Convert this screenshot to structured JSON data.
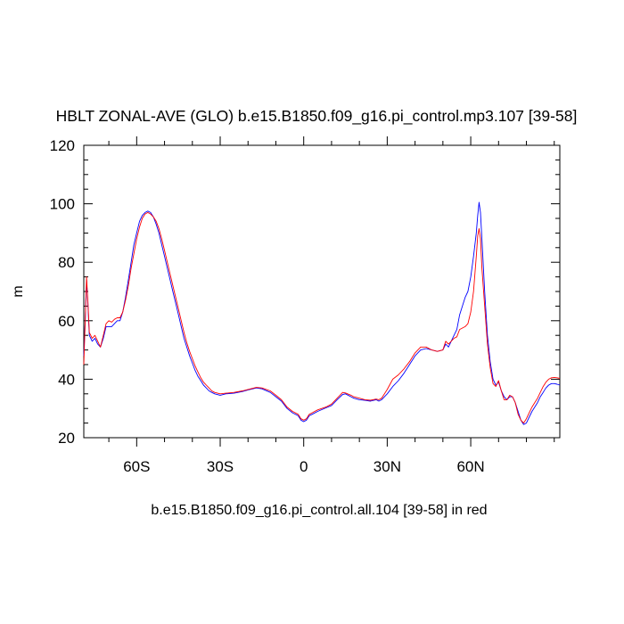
{
  "chart_data": {
    "type": "line",
    "title": "HBLT ZONAL-AVE (GLO) b.e15.B1850.f09_g16.pi_control.mp3.107 [39-58]",
    "ylabel": "m",
    "xlabel": "b.e15.B1850.f09_g16.pi_control.all.104 [39-58] in red",
    "xlim": [
      -79,
      92
    ],
    "ylim": [
      20,
      120
    ],
    "x_ticks": [
      {
        "value": -60,
        "label": "60S"
      },
      {
        "value": -30,
        "label": "30S"
      },
      {
        "value": 0,
        "label": "0"
      },
      {
        "value": 30,
        "label": "30N"
      },
      {
        "value": 60,
        "label": "60N"
      }
    ],
    "y_ticks": [
      20,
      40,
      60,
      80,
      100,
      120
    ],
    "grid": false,
    "series": [
      {
        "color": "#0000ff",
        "points": [
          [
            -79,
            48
          ],
          [
            -78.5,
            60
          ],
          [
            -78,
            74
          ],
          [
            -77.5,
            65
          ],
          [
            -77,
            55
          ],
          [
            -76,
            53
          ],
          [
            -75,
            54
          ],
          [
            -74,
            52
          ],
          [
            -73,
            51
          ],
          [
            -72,
            54
          ],
          [
            -71,
            58
          ],
          [
            -70,
            58
          ],
          [
            -69,
            58
          ],
          [
            -68,
            59
          ],
          [
            -67,
            60
          ],
          [
            -66,
            60
          ],
          [
            -65,
            63
          ],
          [
            -64,
            68
          ],
          [
            -63,
            74
          ],
          [
            -62,
            80
          ],
          [
            -61,
            86
          ],
          [
            -60,
            90
          ],
          [
            -59,
            94
          ],
          [
            -58,
            96
          ],
          [
            -57,
            97
          ],
          [
            -56,
            97.5
          ],
          [
            -55,
            97
          ],
          [
            -54,
            95.5
          ],
          [
            -53,
            93
          ],
          [
            -52,
            90
          ],
          [
            -51,
            86
          ],
          [
            -50,
            82
          ],
          [
            -49,
            78
          ],
          [
            -48,
            74
          ],
          [
            -47,
            70
          ],
          [
            -46,
            66
          ],
          [
            -45,
            62
          ],
          [
            -44,
            58
          ],
          [
            -43,
            54
          ],
          [
            -42,
            51
          ],
          [
            -41,
            48
          ],
          [
            -40,
            45.5
          ],
          [
            -39,
            43
          ],
          [
            -38,
            41
          ],
          [
            -37,
            39.5
          ],
          [
            -36,
            38
          ],
          [
            -35,
            37
          ],
          [
            -34,
            36
          ],
          [
            -33,
            35.5
          ],
          [
            -32,
            35
          ],
          [
            -30,
            34.5
          ],
          [
            -28,
            35
          ],
          [
            -25,
            35.2
          ],
          [
            -22,
            35.8
          ],
          [
            -20,
            36.3
          ],
          [
            -17,
            37
          ],
          [
            -15,
            36.7
          ],
          [
            -12,
            35.5
          ],
          [
            -10,
            34
          ],
          [
            -8,
            32.5
          ],
          [
            -6,
            30
          ],
          [
            -4,
            28.5
          ],
          [
            -2,
            27.5
          ],
          [
            -1,
            26
          ],
          [
            0,
            25.5
          ],
          [
            1,
            26
          ],
          [
            2,
            27.5
          ],
          [
            3,
            28
          ],
          [
            5,
            29
          ],
          [
            8,
            30.2
          ],
          [
            10,
            31
          ],
          [
            12,
            33
          ],
          [
            14,
            34.8
          ],
          [
            15,
            35
          ],
          [
            17,
            34
          ],
          [
            18,
            33.5
          ],
          [
            20,
            33
          ],
          [
            22,
            32.8
          ],
          [
            24,
            32.5
          ],
          [
            26,
            33
          ],
          [
            27,
            32.5
          ],
          [
            28,
            33
          ],
          [
            30,
            35
          ],
          [
            32,
            37.5
          ],
          [
            34,
            39.5
          ],
          [
            36,
            42
          ],
          [
            38,
            45
          ],
          [
            40,
            48
          ],
          [
            42,
            50
          ],
          [
            44,
            50.5
          ],
          [
            46,
            50
          ],
          [
            48,
            49.5
          ],
          [
            50,
            50
          ],
          [
            51,
            52
          ],
          [
            52,
            51
          ],
          [
            54,
            55
          ],
          [
            55,
            57
          ],
          [
            56,
            62
          ],
          [
            57,
            65
          ],
          [
            58,
            68
          ],
          [
            59,
            70
          ],
          [
            60,
            75
          ],
          [
            61,
            82
          ],
          [
            62,
            90
          ],
          [
            62.5,
            96
          ],
          [
            63,
            100.5
          ],
          [
            63.5,
            97
          ],
          [
            64,
            88
          ],
          [
            65,
            70
          ],
          [
            66,
            55
          ],
          [
            67,
            46
          ],
          [
            68,
            40
          ],
          [
            69,
            38
          ],
          [
            70,
            39
          ],
          [
            71,
            36
          ],
          [
            72,
            34
          ],
          [
            73,
            33
          ],
          [
            74,
            34
          ],
          [
            75,
            34
          ],
          [
            76,
            32
          ],
          [
            77,
            29
          ],
          [
            78,
            26
          ],
          [
            79,
            24.5
          ],
          [
            80,
            25
          ],
          [
            81,
            27
          ],
          [
            82,
            29
          ],
          [
            83,
            30.5
          ],
          [
            84,
            32
          ],
          [
            85,
            34
          ],
          [
            86,
            35.5
          ],
          [
            87,
            37
          ],
          [
            88,
            38
          ],
          [
            89,
            38.5
          ],
          [
            90,
            38.5
          ],
          [
            91,
            38.3
          ],
          [
            92,
            38
          ]
        ]
      },
      {
        "color": "#ff0000",
        "points": [
          [
            -79,
            45
          ],
          [
            -78.5,
            60
          ],
          [
            -78,
            75
          ],
          [
            -77.5,
            66
          ],
          [
            -77,
            56
          ],
          [
            -76,
            54
          ],
          [
            -75,
            55
          ],
          [
            -74,
            53
          ],
          [
            -73,
            51
          ],
          [
            -72,
            55
          ],
          [
            -71,
            59
          ],
          [
            -70,
            60
          ],
          [
            -69,
            59.5
          ],
          [
            -68,
            60.5
          ],
          [
            -67,
            61
          ],
          [
            -66,
            61
          ],
          [
            -65,
            63
          ],
          [
            -64,
            67
          ],
          [
            -63,
            72
          ],
          [
            -62,
            78
          ],
          [
            -61,
            83
          ],
          [
            -60,
            88
          ],
          [
            -59,
            92
          ],
          [
            -58,
            95
          ],
          [
            -57,
            96.5
          ],
          [
            -56,
            97
          ],
          [
            -55,
            96.5
          ],
          [
            -54,
            95.5
          ],
          [
            -53,
            94
          ],
          [
            -52,
            91.5
          ],
          [
            -51,
            88
          ],
          [
            -50,
            84
          ],
          [
            -49,
            80
          ],
          [
            -48,
            76
          ],
          [
            -47,
            72
          ],
          [
            -46,
            68
          ],
          [
            -45,
            64
          ],
          [
            -44,
            60
          ],
          [
            -43,
            56
          ],
          [
            -42,
            52.5
          ],
          [
            -41,
            49.5
          ],
          [
            -40,
            47
          ],
          [
            -39,
            44.5
          ],
          [
            -38,
            42.5
          ],
          [
            -37,
            40.5
          ],
          [
            -36,
            39
          ],
          [
            -35,
            38
          ],
          [
            -34,
            37
          ],
          [
            -33,
            36
          ],
          [
            -32,
            35.5
          ],
          [
            -30,
            35
          ],
          [
            -28,
            35.2
          ],
          [
            -25,
            35.5
          ],
          [
            -22,
            36
          ],
          [
            -20,
            36.5
          ],
          [
            -17,
            37.2
          ],
          [
            -15,
            37
          ],
          [
            -12,
            36
          ],
          [
            -10,
            34.5
          ],
          [
            -8,
            33
          ],
          [
            -6,
            30.5
          ],
          [
            -4,
            29
          ],
          [
            -2,
            28
          ],
          [
            -1,
            26.5
          ],
          [
            0,
            26
          ],
          [
            1,
            26.5
          ],
          [
            2,
            28
          ],
          [
            3,
            28.5
          ],
          [
            5,
            29.5
          ],
          [
            8,
            30.5
          ],
          [
            10,
            31.5
          ],
          [
            12,
            33.5
          ],
          [
            14,
            35.5
          ],
          [
            15,
            35.3
          ],
          [
            17,
            34.5
          ],
          [
            18,
            34
          ],
          [
            20,
            33.5
          ],
          [
            22,
            33
          ],
          [
            24,
            32.8
          ],
          [
            26,
            33.2
          ],
          [
            27,
            33
          ],
          [
            28,
            33.5
          ],
          [
            29,
            35
          ],
          [
            30,
            36.5
          ],
          [
            32,
            40
          ],
          [
            34,
            41.5
          ],
          [
            36,
            43.5
          ],
          [
            38,
            46
          ],
          [
            40,
            49
          ],
          [
            42,
            51
          ],
          [
            44,
            51
          ],
          [
            46,
            50
          ],
          [
            48,
            49.5
          ],
          [
            50,
            50
          ],
          [
            51,
            53
          ],
          [
            52,
            52
          ],
          [
            54,
            54
          ],
          [
            55,
            54.5
          ],
          [
            56,
            57
          ],
          [
            57,
            57.5
          ],
          [
            58,
            58
          ],
          [
            59,
            59
          ],
          [
            60,
            63
          ],
          [
            61,
            70
          ],
          [
            62,
            82
          ],
          [
            62.5,
            89
          ],
          [
            63,
            91.5
          ],
          [
            63.5,
            88
          ],
          [
            64,
            78
          ],
          [
            65,
            65
          ],
          [
            66,
            52
          ],
          [
            67,
            44
          ],
          [
            68,
            38.5
          ],
          [
            69,
            37.5
          ],
          [
            70,
            39.5
          ],
          [
            71,
            36
          ],
          [
            72,
            33
          ],
          [
            73,
            33
          ],
          [
            74,
            34.5
          ],
          [
            75,
            34
          ],
          [
            76,
            32
          ],
          [
            77,
            28
          ],
          [
            78,
            26
          ],
          [
            79,
            25
          ],
          [
            80,
            26.5
          ],
          [
            81,
            28.5
          ],
          [
            82,
            30.5
          ],
          [
            83,
            32
          ],
          [
            84,
            33.5
          ],
          [
            85,
            35.5
          ],
          [
            86,
            37.5
          ],
          [
            87,
            39
          ],
          [
            88,
            40
          ],
          [
            89,
            40.5
          ],
          [
            90,
            40.6
          ],
          [
            91,
            40.5
          ],
          [
            92,
            40.3
          ]
        ]
      }
    ]
  }
}
